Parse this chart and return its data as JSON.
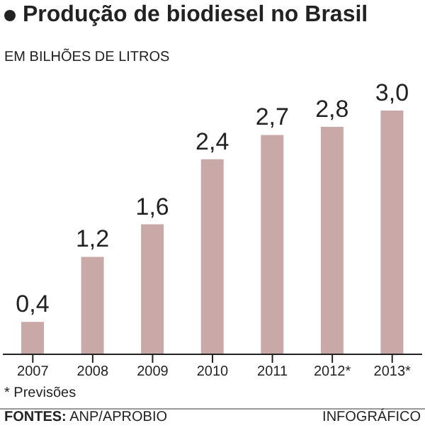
{
  "chart_data": {
    "type": "bar",
    "title": "Produção de biodiesel no Brasil",
    "subtitle": "EM BILHÕES DE LITROS",
    "categories": [
      "2007",
      "2008",
      "2009",
      "2010",
      "2011",
      "2012*",
      "2013*"
    ],
    "values": [
      0.4,
      1.2,
      1.6,
      2.4,
      2.7,
      2.8,
      3.0
    ],
    "value_labels": [
      "0,4",
      "1,2",
      "1,6",
      "2,4",
      "2,7",
      "2,8",
      "3,0"
    ],
    "color": "#c9a9a7",
    "annotations": [
      "* Previsões",
      "FONTES: ANP/APROBIO",
      "INFOGRÁFICO"
    ]
  }
}
